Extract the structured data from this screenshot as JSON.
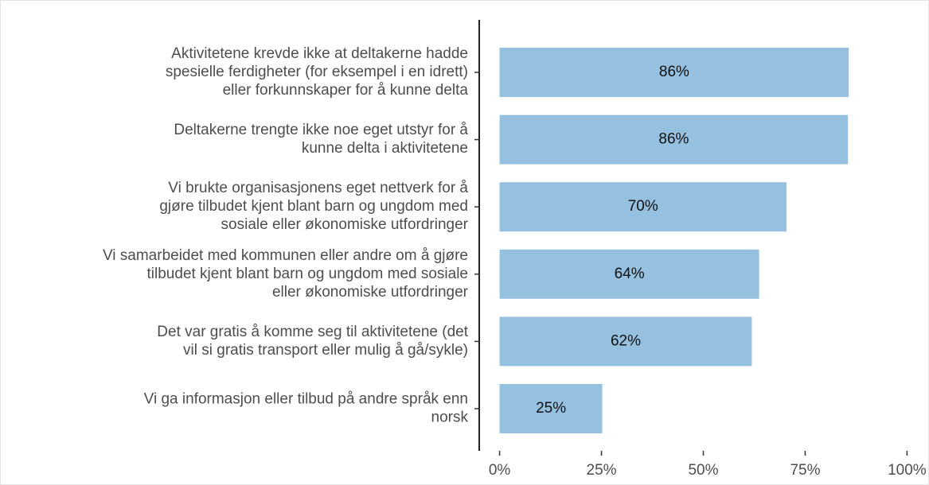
{
  "chart_data": {
    "type": "barh",
    "categories": [
      "Aktivitetene krevde ikke at deltakerne hadde\nspesielle ferdigheter (for eksempel i en idrett)\neller forkunnskaper for å kunne delta",
      "Deltakerne trengte ikke noe eget utstyr for å\nkunne delta i aktivitetene",
      "Vi brukte organisasjonens eget nettverk for å\ngjøre tilbudet kjent blant barn og ungdom med\nsosiale eller økonomiske utfordringer",
      "Vi samarbeidet med kommunen eller andre om å gjøre\ntilbudet kjent blant barn og ungdom med sosiale\neller økonomiske utfordringer",
      "Det var gratis å komme seg til aktivitetene (det\nvil si gratis transport eller mulig å gå/sykle)",
      "Vi ga informasjon eller tilbud på andre språk enn\nnorsk"
    ],
    "values": [
      85.7,
      85.5,
      70.4,
      63.7,
      61.9,
      25.2
    ],
    "value_labels": [
      "86%",
      "86%",
      "70%",
      "64%",
      "62%",
      "25%"
    ],
    "color": "#95c0e0",
    "xlim": [
      -5,
      105
    ],
    "xticks": [
      {
        "value": 0,
        "label": "0%"
      },
      {
        "value": 25,
        "label": "25%"
      },
      {
        "value": 50,
        "label": "50%"
      },
      {
        "value": 75,
        "label": "75%"
      },
      {
        "value": 100,
        "label": "100%"
      }
    ],
    "grid": false
  }
}
